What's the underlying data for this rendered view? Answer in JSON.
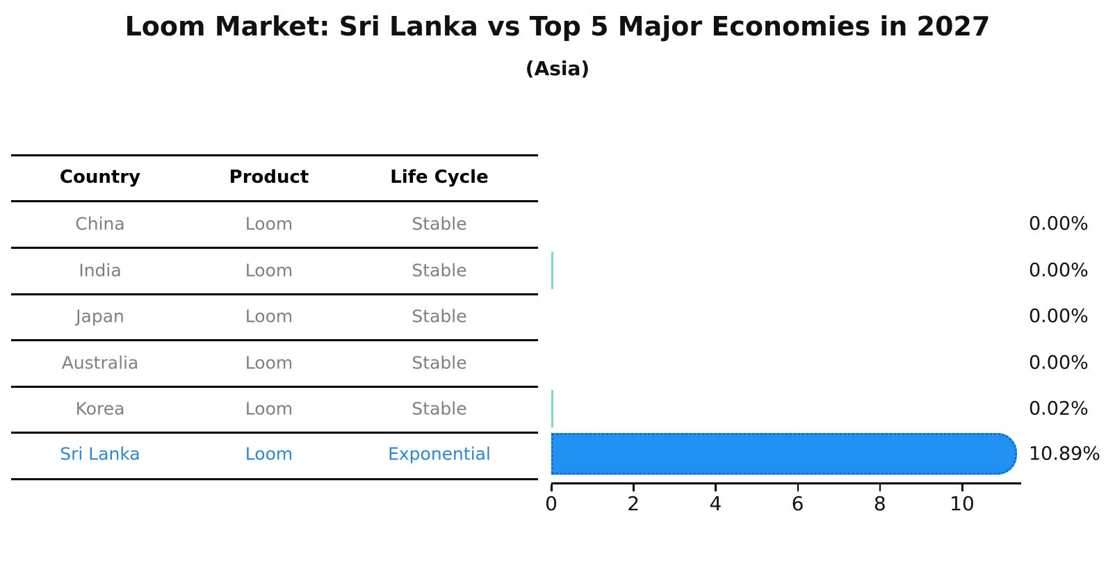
{
  "title": "Loom Market: Sri Lanka vs Top 5 Major Economies in 2027",
  "subtitle": "(Asia)",
  "table": {
    "headers": [
      "Country",
      "Product",
      "Life Cycle"
    ],
    "rows": [
      {
        "country": "China",
        "product": "Loom",
        "life_cycle": "Stable",
        "value_label": "0.00%",
        "value": 0.0,
        "highlight": false,
        "edge_visible": false
      },
      {
        "country": "India",
        "product": "Loom",
        "life_cycle": "Stable",
        "value_label": "0.00%",
        "value": 0.0,
        "highlight": false,
        "edge_visible": true
      },
      {
        "country": "Japan",
        "product": "Loom",
        "life_cycle": "Stable",
        "value_label": "0.00%",
        "value": 0.0,
        "highlight": false,
        "edge_visible": false
      },
      {
        "country": "Australia",
        "product": "Loom",
        "life_cycle": "Stable",
        "value_label": "0.00%",
        "value": 0.0,
        "highlight": false,
        "edge_visible": false
      },
      {
        "country": "Korea",
        "product": "Loom",
        "life_cycle": "Stable",
        "value_label": "0.02%",
        "value": 0.02,
        "highlight": false,
        "edge_visible": true
      },
      {
        "country": "Sri Lanka",
        "product": "Loom",
        "life_cycle": "Exponential",
        "value_label": "10.89%",
        "value": 10.89,
        "highlight": true,
        "edge_visible": true
      }
    ]
  },
  "chart_data": {
    "type": "bar",
    "orientation": "horizontal",
    "categories": [
      "China",
      "India",
      "Japan",
      "Australia",
      "Korea",
      "Sri Lanka"
    ],
    "values": [
      0.0,
      0.0,
      0.0,
      0.0,
      0.02,
      10.89
    ],
    "value_labels": [
      "0.00%",
      "0.00%",
      "0.00%",
      "0.00%",
      "0.02%",
      "10.89%"
    ],
    "title": "Loom Market: Sri Lanka vs Top 5 Major Economies in 2027",
    "subtitle": "(Asia)",
    "xlabel": "",
    "ylabel": "",
    "xlim": [
      0,
      11.4
    ],
    "xticks": [
      0,
      2,
      4,
      6,
      8,
      10
    ],
    "grid": false,
    "legend": false,
    "highlight_category": "Sri Lanka"
  },
  "colors": {
    "highlight_text": "#2e86d1",
    "row_text": "#808080",
    "bar_fill": "#2191f3",
    "bar_edge_dots": "#0e6cd0",
    "tiny_bar": "#7fd7c8",
    "line": "#000000"
  }
}
